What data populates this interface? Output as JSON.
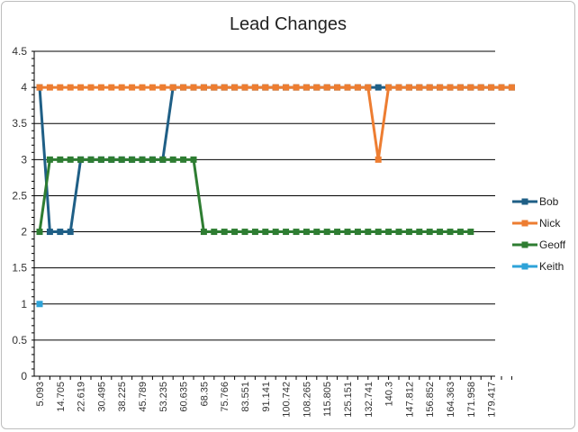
{
  "chart_data": {
    "type": "line",
    "title": "Lead Changes",
    "xlabel": "",
    "ylabel": "",
    "ylim": [
      0,
      4.5
    ],
    "yticks": [
      "0",
      "0.5",
      "1",
      "1.5",
      "2",
      "2.5",
      "3",
      "3.5",
      "4",
      "4.5"
    ],
    "x_tick_labels": [
      "5.093",
      "14.705",
      "22.619",
      "30.495",
      "38.225",
      "45.789",
      "53.235",
      "60.635",
      "68.35",
      "75.766",
      "83.551",
      "91.141",
      "100.742",
      "108.265",
      "115.805",
      "125.151",
      "132.741",
      "140.3",
      "147.812",
      "156.852",
      "164.363",
      "171.958",
      "179.417"
    ],
    "n_points": 47,
    "grid": "horizontal",
    "legend_position": "right",
    "series": [
      {
        "name": "Bob",
        "color": "#1f5f86",
        "values": [
          4,
          2,
          2,
          2,
          3,
          3,
          3,
          3,
          3,
          3,
          3,
          3,
          3,
          4,
          4,
          4,
          4,
          4,
          4,
          4,
          4,
          4,
          4,
          4,
          4,
          4,
          4,
          4,
          4,
          4,
          4,
          4,
          4,
          4,
          4,
          4,
          4,
          4,
          4,
          4,
          4,
          4,
          4,
          4,
          4,
          4,
          4
        ]
      },
      {
        "name": "Nick",
        "color": "#ed7d31",
        "values": [
          4,
          4,
          4,
          4,
          4,
          4,
          4,
          4,
          4,
          4,
          4,
          4,
          4,
          4,
          4,
          4,
          4,
          4,
          4,
          4,
          4,
          4,
          4,
          4,
          4,
          4,
          4,
          4,
          4,
          4,
          4,
          4,
          4,
          3,
          4,
          4,
          4,
          4,
          4,
          4,
          4,
          4,
          4,
          4,
          4,
          4,
          4
        ]
      },
      {
        "name": "Geoff",
        "color": "#2e7d32",
        "values": [
          2,
          3,
          3,
          3,
          3,
          3,
          3,
          3,
          3,
          3,
          3,
          3,
          3,
          3,
          3,
          3,
          2,
          2,
          2,
          2,
          2,
          2,
          2,
          2,
          2,
          2,
          2,
          2,
          2,
          2,
          2,
          2,
          2,
          2,
          2,
          2,
          2,
          2,
          2,
          2,
          2,
          2,
          2,
          null,
          null,
          null,
          null
        ]
      },
      {
        "name": "Keith",
        "color": "#2ea3d8",
        "values": [
          1,
          null,
          null,
          null,
          null,
          null,
          null,
          null,
          null,
          null,
          null,
          null,
          null,
          null,
          null,
          null,
          null,
          null,
          null,
          null,
          null,
          null,
          null,
          null,
          null,
          null,
          null,
          null,
          null,
          null,
          null,
          null,
          null,
          null,
          null,
          null,
          null,
          null,
          null,
          null,
          null,
          null,
          null,
          null,
          null,
          null,
          null
        ]
      }
    ]
  }
}
